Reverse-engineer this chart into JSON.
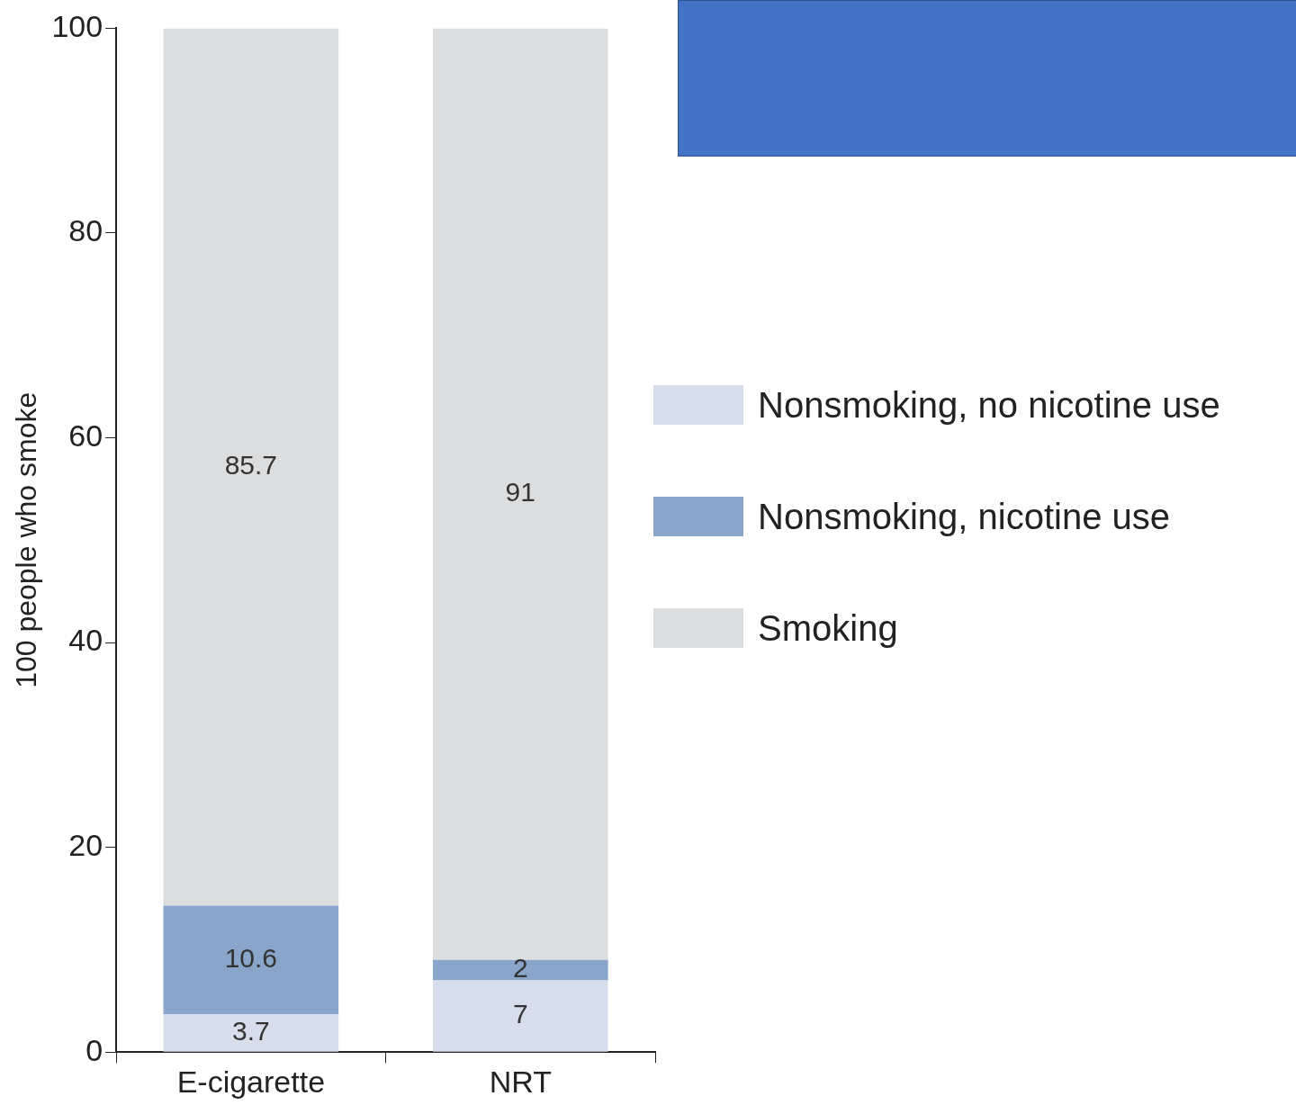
{
  "chart_data": {
    "type": "bar",
    "stacked": true,
    "ylabel": "100 people who smoke",
    "categories": [
      "E-cigarette",
      "NRT"
    ],
    "series": [
      {
        "name": "Nonsmoking, no nicotine use",
        "color": "#d6deec",
        "values": [
          3.7,
          7
        ]
      },
      {
        "name": "Nonsmoking, nicotine use",
        "color": "#8aa5ca",
        "values": [
          10.6,
          2
        ]
      },
      {
        "name": "Smoking",
        "color": "#dcdddf",
        "values": [
          85.7,
          91
        ]
      }
    ],
    "ylim": [
      0,
      100
    ],
    "yticks": [
      0,
      20,
      40,
      60,
      80,
      100
    ],
    "grid": false,
    "legend": "right",
    "data_labels": true
  }
}
